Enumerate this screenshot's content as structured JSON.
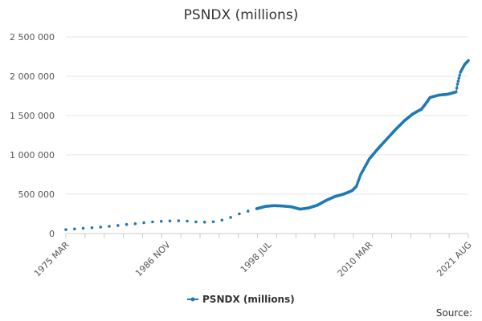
{
  "chart_data": {
    "type": "line",
    "title": "PSNDX (millions)",
    "xlabel": "",
    "ylabel": "",
    "ylim": [
      0,
      2500000
    ],
    "y_ticks": [
      0,
      500000,
      1000000,
      1500000,
      2000000,
      2500000
    ],
    "y_tick_labels": [
      "0",
      "500 000",
      "1 000 000",
      "1 500 000",
      "2 000 000",
      "2 500 000"
    ],
    "x_range": [
      "1975-03",
      "2021-08"
    ],
    "x_tick_labels": [
      "1975 MAR",
      "1986 NOV",
      "1998 JUL",
      "2010 MAR",
      "2021 AUG"
    ],
    "x_tick_dates": [
      "1975-03",
      "1986-11",
      "1998-07",
      "2010-03",
      "2021-08"
    ],
    "grid": "horizontal",
    "legend_position": "bottom-center",
    "series": [
      {
        "name": "PSNDX (millions)",
        "color": "#1f7ab3",
        "points": [
          [
            "1975-03",
            50000
          ],
          [
            "1976-03",
            58000
          ],
          [
            "1977-03",
            66000
          ],
          [
            "1978-03",
            73000
          ],
          [
            "1979-03",
            82000
          ],
          [
            "1980-03",
            92000
          ],
          [
            "1981-03",
            103000
          ],
          [
            "1982-03",
            115000
          ],
          [
            "1983-03",
            125000
          ],
          [
            "1984-03",
            138000
          ],
          [
            "1985-03",
            148000
          ],
          [
            "1986-03",
            155000
          ],
          [
            "1987-03",
            160000
          ],
          [
            "1988-03",
            162000
          ],
          [
            "1989-03",
            158000
          ],
          [
            "1990-03",
            148000
          ],
          [
            "1991-03",
            145000
          ],
          [
            "1992-03",
            150000
          ],
          [
            "1993-03",
            170000
          ],
          [
            "1994-03",
            205000
          ],
          [
            "1995-03",
            250000
          ],
          [
            "1996-03",
            285000
          ],
          [
            "1997-03",
            315000
          ],
          [
            "1998-03",
            345000
          ],
          [
            "1999-03",
            355000
          ],
          [
            "2000-03",
            350000
          ],
          [
            "2001-03",
            340000
          ],
          [
            "2002-03",
            310000
          ],
          [
            "2003-03",
            325000
          ],
          [
            "2004-03",
            360000
          ],
          [
            "2005-03",
            420000
          ],
          [
            "2006-03",
            470000
          ],
          [
            "2007-03",
            500000
          ],
          [
            "2008-03",
            545000
          ],
          [
            "2008-09",
            600000
          ],
          [
            "2009-03",
            750000
          ],
          [
            "2009-09",
            850000
          ],
          [
            "2010-03",
            950000
          ],
          [
            "2011-03",
            1080000
          ],
          [
            "2012-03",
            1200000
          ],
          [
            "2013-03",
            1320000
          ],
          [
            "2014-03",
            1430000
          ],
          [
            "2015-03",
            1520000
          ],
          [
            "2016-03",
            1580000
          ],
          [
            "2016-09",
            1650000
          ],
          [
            "2017-03",
            1730000
          ],
          [
            "2018-03",
            1760000
          ],
          [
            "2019-03",
            1770000
          ],
          [
            "2020-03",
            1800000
          ],
          [
            "2020-05",
            1900000
          ],
          [
            "2020-09",
            2050000
          ],
          [
            "2021-03",
            2150000
          ],
          [
            "2021-08",
            2200000
          ]
        ]
      }
    ]
  },
  "legend": {
    "label": "PSNDX (millions)"
  },
  "source": {
    "label": "Source:"
  },
  "colors": {
    "series": "#1f7ab3",
    "grid": "#e6e6e6",
    "axis": "#cccccc"
  }
}
